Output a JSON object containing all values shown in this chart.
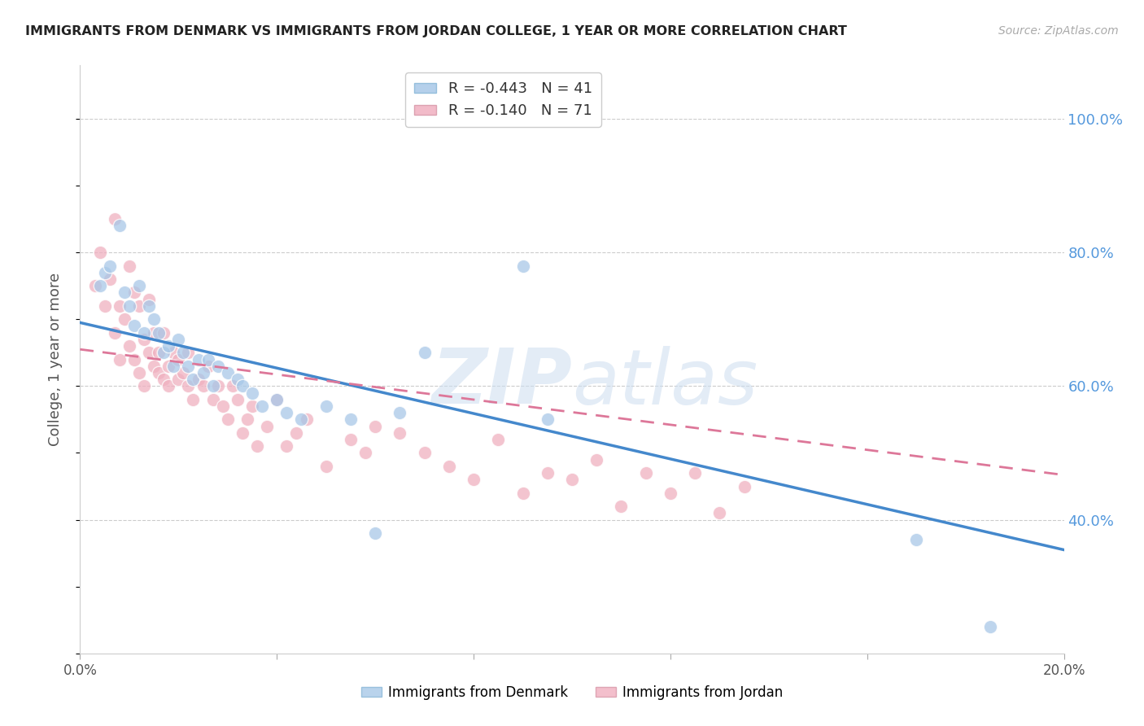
{
  "title": "IMMIGRANTS FROM DENMARK VS IMMIGRANTS FROM JORDAN COLLEGE, 1 YEAR OR MORE CORRELATION CHART",
  "source": "Source: ZipAtlas.com",
  "ylabel": "College, 1 year or more",
  "xlim": [
    0.0,
    0.2
  ],
  "ylim": [
    0.2,
    1.08
  ],
  "xticks": [
    0.0,
    0.04,
    0.08,
    0.12,
    0.16,
    0.2
  ],
  "yticks_right": [
    0.4,
    0.6,
    0.8,
    1.0
  ],
  "ytick_labels_right": [
    "40.0%",
    "60.0%",
    "80.0%",
    "100.0%"
  ],
  "legend_r_denmark": "-0.443",
  "legend_n_denmark": "41",
  "legend_r_jordan": "-0.140",
  "legend_n_jordan": "71",
  "denmark_color": "#a8c8e8",
  "jordan_color": "#f0b0c0",
  "denmark_line_color": "#4488cc",
  "jordan_line_color": "#dd7799",
  "denmark_scatter_x": [
    0.004,
    0.005,
    0.006,
    0.008,
    0.009,
    0.01,
    0.011,
    0.012,
    0.013,
    0.014,
    0.015,
    0.016,
    0.017,
    0.018,
    0.019,
    0.02,
    0.021,
    0.022,
    0.023,
    0.024,
    0.025,
    0.026,
    0.027,
    0.028,
    0.03,
    0.032,
    0.033,
    0.035,
    0.037,
    0.04,
    0.042,
    0.045,
    0.05,
    0.055,
    0.06,
    0.065,
    0.07,
    0.09,
    0.095,
    0.17,
    0.185
  ],
  "denmark_scatter_y": [
    0.75,
    0.77,
    0.78,
    0.84,
    0.74,
    0.72,
    0.69,
    0.75,
    0.68,
    0.72,
    0.7,
    0.68,
    0.65,
    0.66,
    0.63,
    0.67,
    0.65,
    0.63,
    0.61,
    0.64,
    0.62,
    0.64,
    0.6,
    0.63,
    0.62,
    0.61,
    0.6,
    0.59,
    0.57,
    0.58,
    0.56,
    0.55,
    0.57,
    0.55,
    0.38,
    0.56,
    0.65,
    0.78,
    0.55,
    0.37,
    0.24
  ],
  "jordan_scatter_x": [
    0.003,
    0.004,
    0.005,
    0.006,
    0.007,
    0.007,
    0.008,
    0.008,
    0.009,
    0.01,
    0.01,
    0.011,
    0.011,
    0.012,
    0.012,
    0.013,
    0.013,
    0.014,
    0.014,
    0.015,
    0.015,
    0.016,
    0.016,
    0.017,
    0.017,
    0.018,
    0.018,
    0.019,
    0.02,
    0.02,
    0.021,
    0.022,
    0.022,
    0.023,
    0.024,
    0.025,
    0.026,
    0.027,
    0.028,
    0.029,
    0.03,
    0.031,
    0.032,
    0.033,
    0.034,
    0.035,
    0.036,
    0.038,
    0.04,
    0.042,
    0.044,
    0.046,
    0.05,
    0.055,
    0.058,
    0.06,
    0.065,
    0.07,
    0.075,
    0.08,
    0.085,
    0.09,
    0.095,
    0.1,
    0.105,
    0.11,
    0.115,
    0.12,
    0.125,
    0.13,
    0.135
  ],
  "jordan_scatter_y": [
    0.75,
    0.8,
    0.72,
    0.76,
    0.68,
    0.85,
    0.64,
    0.72,
    0.7,
    0.66,
    0.78,
    0.64,
    0.74,
    0.62,
    0.72,
    0.6,
    0.67,
    0.65,
    0.73,
    0.63,
    0.68,
    0.62,
    0.65,
    0.61,
    0.68,
    0.63,
    0.6,
    0.65,
    0.61,
    0.64,
    0.62,
    0.6,
    0.65,
    0.58,
    0.61,
    0.6,
    0.63,
    0.58,
    0.6,
    0.57,
    0.55,
    0.6,
    0.58,
    0.53,
    0.55,
    0.57,
    0.51,
    0.54,
    0.58,
    0.51,
    0.53,
    0.55,
    0.48,
    0.52,
    0.5,
    0.54,
    0.53,
    0.5,
    0.48,
    0.46,
    0.52,
    0.44,
    0.47,
    0.46,
    0.49,
    0.42,
    0.47,
    0.44,
    0.47,
    0.41,
    0.45
  ],
  "denmark_line_x0": 0.0,
  "denmark_line_y0": 0.695,
  "denmark_line_x1": 0.2,
  "denmark_line_y1": 0.355,
  "jordan_line_x0": 0.0,
  "jordan_line_y0": 0.655,
  "jordan_line_x1": 0.2,
  "jordan_line_y1": 0.467,
  "watermark_zip": "ZIP",
  "watermark_atlas": "atlas",
  "background_color": "#ffffff",
  "grid_color": "#cccccc"
}
